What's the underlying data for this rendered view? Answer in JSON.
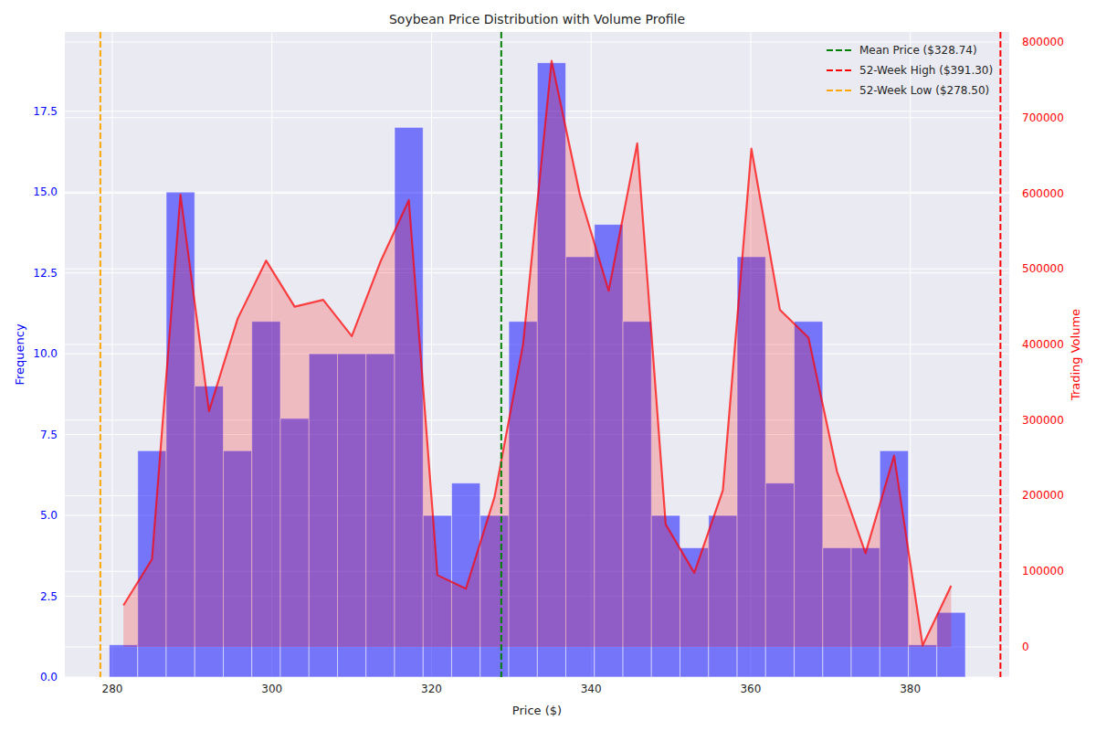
{
  "chart_data": {
    "type": "histogram",
    "title": "Soybean Price Distribution with Volume Profile",
    "x_label": "Price ($)",
    "y_label": "Frequency",
    "y2_label": "Trading Volume",
    "bins": [
      279.6,
      283.18,
      286.75,
      290.33,
      293.91,
      297.48,
      301.06,
      304.64,
      308.22,
      311.79,
      315.37,
      318.95,
      322.52,
      326.1,
      329.68,
      333.26,
      336.83,
      340.41,
      343.99,
      347.56,
      351.14,
      354.72,
      358.3,
      361.87,
      365.45,
      369.03,
      372.6,
      376.18,
      379.76,
      383.33,
      386.91
    ],
    "series": [
      {
        "type": "bar",
        "color": "blue",
        "values": [
          1,
          7,
          15,
          9,
          7,
          11,
          8,
          10,
          10,
          10,
          17,
          5,
          6,
          5,
          11,
          19,
          13,
          14,
          11,
          5,
          4,
          5,
          13,
          6,
          11,
          4,
          4,
          7,
          1,
          2
        ]
      },
      {
        "type": "line",
        "color": "red",
        "axis": "y2",
        "x": [
          281.39,
          284.97,
          288.54,
          292.12,
          295.7,
          299.27,
          302.85,
          306.43,
          310.01,
          313.58,
          317.16,
          320.74,
          324.31,
          327.89,
          331.47,
          335.05,
          338.62,
          342.2,
          345.78,
          349.35,
          352.93,
          356.51,
          360.09,
          363.66,
          367.24,
          370.82,
          374.39,
          377.97,
          381.55,
          385.12
        ],
        "values": [
          55000,
          116000,
          598000,
          312000,
          434000,
          511000,
          450000,
          459000,
          411000,
          509000,
          591000,
          95000,
          77000,
          198000,
          400000,
          775000,
          597000,
          471000,
          666000,
          162000,
          98000,
          207000,
          659000,
          446000,
          409000,
          232000,
          124000,
          253000,
          2000,
          81000
        ]
      }
    ],
    "reference_lines": [
      {
        "name": "Mean Price ($328.74)",
        "value": 328.74,
        "color": "green",
        "line_style": "dashed"
      },
      {
        "name": "52-Week High ($391.30)",
        "value": 391.3,
        "color": "red",
        "line_style": "dashed"
      },
      {
        "name": "52-Week Low ($278.50)",
        "value": 278.5,
        "color": "orange",
        "line_style": "dashed"
      }
    ],
    "xlim": [
      274.05,
      392.4
    ],
    "xticks": [
      280,
      300,
      320,
      340,
      360,
      380
    ],
    "ylim": [
      0,
      19.95
    ],
    "yticks": [
      {
        "value": 0,
        "label": "0.0"
      },
      2.5,
      {
        "value": 5,
        "label": "5.0"
      },
      7.5,
      {
        "value": 10,
        "label": "10.0"
      },
      12.5,
      {
        "value": 15,
        "label": "15.0"
      },
      17.5
    ],
    "y2lim": [
      -39900,
      813300
    ],
    "y2ticks": [
      0,
      100000,
      200000,
      300000,
      400000,
      500000,
      600000,
      700000,
      800000
    ],
    "grid": true,
    "legend": "upper right"
  }
}
